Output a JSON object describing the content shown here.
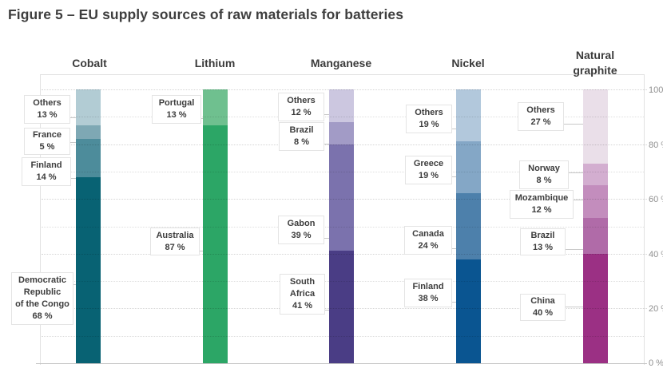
{
  "title": "Figure 5 – EU supply sources of raw materials for batteries",
  "y_axis": {
    "tick_labels": [
      "100 %",
      "80 %",
      "60 %",
      "40 %",
      "20 %",
      "0 %"
    ]
  },
  "chart_data": {
    "type": "bar",
    "subtype": "100%-stacked-columns",
    "title": "EU supply sources of raw materials for batteries",
    "unit": "%",
    "ylim": [
      0,
      100
    ],
    "yticks": [
      0,
      20,
      40,
      60,
      80,
      100
    ],
    "gridline_step": 10,
    "legend_position": "none",
    "categories": [
      "Cobalt",
      "Lithium",
      "Manganese",
      "Nickel",
      "Natural graphite"
    ],
    "bars": [
      {
        "material": "Cobalt",
        "header": "Cobalt",
        "segments_top_to_bottom": [
          {
            "label": "Others",
            "pct": 13,
            "color": "#b2ccd4"
          },
          {
            "label": "France",
            "pct": 5,
            "color": "#7ea8b4"
          },
          {
            "label": "Finland",
            "pct": 14,
            "color": "#4d8c9b"
          },
          {
            "label": "Democratic Republic of the Congo",
            "pct": 68,
            "color": "#086273"
          }
        ]
      },
      {
        "material": "Lithium",
        "header": "Lithium",
        "segments_top_to_bottom": [
          {
            "label": "Portugal",
            "pct": 13,
            "color": "#6fc08f"
          },
          {
            "label": "Australia",
            "pct": 87,
            "color": "#2ca666"
          }
        ]
      },
      {
        "material": "Manganese",
        "header": "Manganese",
        "segments_top_to_bottom": [
          {
            "label": "Others",
            "pct": 12,
            "color": "#ccc7e0"
          },
          {
            "label": "Brazil",
            "pct": 8,
            "color": "#a29bc6"
          },
          {
            "label": "Gabon",
            "pct": 39,
            "color": "#7b72ad"
          },
          {
            "label": "South Africa",
            "pct": 41,
            "color": "#4a3d85"
          }
        ]
      },
      {
        "material": "Nickel",
        "header": "Nickel",
        "segments_top_to_bottom": [
          {
            "label": "Others",
            "pct": 19,
            "color": "#b2c8dc"
          },
          {
            "label": "Greece",
            "pct": 19,
            "color": "#84a7c6"
          },
          {
            "label": "Canada",
            "pct": 24,
            "color": "#4d80ab"
          },
          {
            "label": "Finland",
            "pct": 38,
            "color": "#0a5591"
          }
        ]
      },
      {
        "material": "Natural graphite",
        "header": "Natural\ngraphite",
        "segments_top_to_bottom": [
          {
            "label": "Others",
            "pct": 27,
            "color": "#eadfe9"
          },
          {
            "label": "Norway",
            "pct": 8,
            "color": "#d3aed0"
          },
          {
            "label": "Mozambique",
            "pct": 12,
            "color": "#c38dbd"
          },
          {
            "label": "Brazil",
            "pct": 13,
            "color": "#b06ba8"
          },
          {
            "label": "China",
            "pct": 40,
            "color": "#9b3084"
          }
        ]
      }
    ]
  },
  "callouts": {
    "cobalt_others": "Others\n13 %",
    "cobalt_france": "France\n5 %",
    "cobalt_finland": "Finland\n14 %",
    "cobalt_drc": "Democratic\nRepublic\nof the Congo\n68 %",
    "lithium_portugal": "Portugal\n13 %",
    "lithium_australia": "Australia\n87 %",
    "manganese_others": "Others\n12 %",
    "manganese_brazil": "Brazil\n8 %",
    "manganese_gabon": "Gabon\n39 %",
    "manganese_south_africa": "South\nAfrica\n41 %",
    "nickel_others": "Others\n19 %",
    "nickel_greece": "Greece\n19 %",
    "nickel_canada": "Canada\n24 %",
    "nickel_finland": "Finland\n38 %",
    "graphite_others": "Others\n27 %",
    "graphite_norway": "Norway\n8 %",
    "graphite_mozambique": "Mozambique\n12 %",
    "graphite_brazil": "Brazil\n13 %",
    "graphite_china": "China\n40 %"
  }
}
